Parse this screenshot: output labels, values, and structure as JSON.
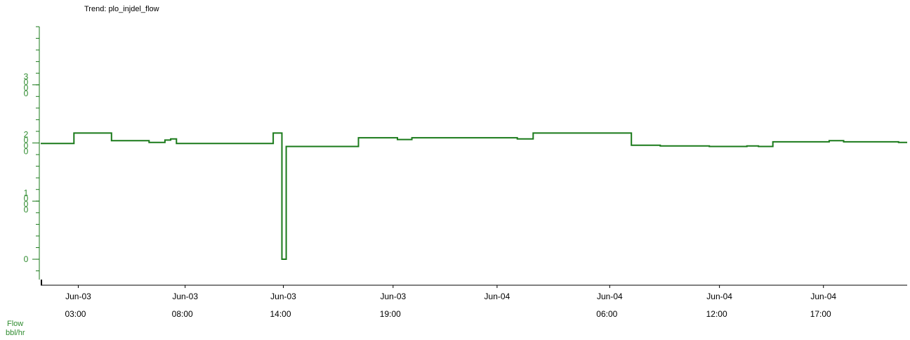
{
  "colors": {
    "series": "#1a7a1a",
    "axis_labels": "#2e8b2e",
    "axis": "#000000",
    "tick": "#1a7a1a"
  },
  "chart_data": {
    "type": "line",
    "step": true,
    "title": "Trend: plo_injdel_flow",
    "ylabel": "Flow",
    "yunit": "bbl/hr",
    "ylim": [
      -0.35,
      4.0
    ],
    "ytick_values": [
      0,
      1,
      2,
      3
    ],
    "ytick_labels": [
      "0",
      "1\n0\n0\n0",
      "2\n0\n0\n0",
      "3\n0\n0\n0"
    ],
    "xlim": [
      0.0,
      30.0
    ],
    "xticks": [
      {
        "x": 1.3,
        "line1": "Jun-03",
        "line2": "03:00"
      },
      {
        "x": 5.0,
        "line1": "Jun-03",
        "line2": "08:00"
      },
      {
        "x": 8.4,
        "line1": "Jun-03",
        "line2": "14:00"
      },
      {
        "x": 12.2,
        "line1": "Jun-03",
        "line2": "19:00"
      },
      {
        "x": 15.8,
        "line1": "Jun-04",
        "line2": ""
      },
      {
        "x": 19.7,
        "line1": "Jun-04",
        "line2": "06:00"
      },
      {
        "x": 23.5,
        "line1": "Jun-04",
        "line2": "12:00"
      },
      {
        "x": 27.1,
        "line1": "Jun-04",
        "line2": "17:00"
      }
    ],
    "series": [
      {
        "x": [
          0.0,
          1.15,
          2.45,
          3.75,
          4.3,
          4.5,
          4.7,
          8.05,
          8.3,
          8.35,
          8.5,
          11.0,
          12.35,
          12.85,
          16.5,
          17.05,
          20.45,
          21.45,
          23.15,
          24.45,
          24.85,
          25.35,
          27.3,
          27.8,
          29.7,
          30.0
        ],
        "y": [
          1.99,
          2.17,
          2.04,
          2.01,
          2.05,
          2.07,
          1.99,
          2.17,
          2.17,
          0.0,
          1.94,
          2.09,
          2.06,
          2.09,
          2.07,
          2.17,
          1.96,
          1.95,
          1.94,
          1.95,
          1.94,
          2.02,
          2.04,
          2.02,
          2.01,
          2.01
        ]
      }
    ]
  }
}
